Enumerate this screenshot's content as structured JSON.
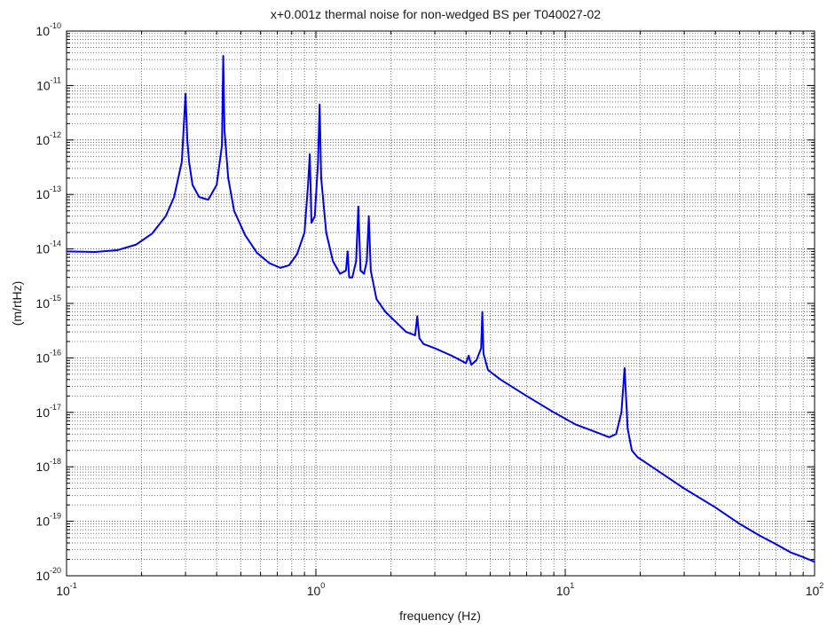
{
  "chart_data": {
    "type": "line",
    "title": "x+0.001z thermal noise for non-wedged BS per T040027-02",
    "xlabel": "frequency (Hz)",
    "ylabel": "(m/rtHz)",
    "xscale": "log",
    "yscale": "log",
    "xlim": [
      0.1,
      100
    ],
    "ylim": [
      1e-20,
      1e-10
    ],
    "grid": "major and minor, dotted",
    "x_ticks": [
      {
        "base": "10",
        "exp": "-1",
        "value": 0.1
      },
      {
        "base": "10",
        "exp": "0",
        "value": 1
      },
      {
        "base": "10",
        "exp": "1",
        "value": 10
      },
      {
        "base": "10",
        "exp": "2",
        "value": 100
      }
    ],
    "y_ticks": [
      {
        "base": "10",
        "exp": "-10",
        "value": 1e-10
      },
      {
        "base": "10",
        "exp": "-11",
        "value": 1e-11
      },
      {
        "base": "10",
        "exp": "-12",
        "value": 1e-12
      },
      {
        "base": "10",
        "exp": "-13",
        "value": 1e-13
      },
      {
        "base": "10",
        "exp": "-14",
        "value": 1e-14
      },
      {
        "base": "10",
        "exp": "-15",
        "value": 1e-15
      },
      {
        "base": "10",
        "exp": "-16",
        "value": 1e-16
      },
      {
        "base": "10",
        "exp": "-17",
        "value": 1e-17
      },
      {
        "base": "10",
        "exp": "-18",
        "value": 1e-18
      },
      {
        "base": "10",
        "exp": "-19",
        "value": 1e-19
      },
      {
        "base": "10",
        "exp": "-20",
        "value": 1e-20
      }
    ],
    "series": [
      {
        "color": "#0000ee",
        "x": [
          0.1,
          0.13,
          0.16,
          0.19,
          0.22,
          0.25,
          0.27,
          0.29,
          0.3,
          0.305,
          0.31,
          0.32,
          0.34,
          0.37,
          0.4,
          0.42,
          0.425,
          0.43,
          0.445,
          0.47,
          0.52,
          0.58,
          0.65,
          0.72,
          0.78,
          0.84,
          0.9,
          0.93,
          0.945,
          0.96,
          0.99,
          1.02,
          1.035,
          1.05,
          1.1,
          1.17,
          1.25,
          1.32,
          1.34,
          1.36,
          1.4,
          1.45,
          1.48,
          1.51,
          1.56,
          1.6,
          1.63,
          1.66,
          1.75,
          1.9,
          2.1,
          2.3,
          2.5,
          2.55,
          2.6,
          2.7,
          3.0,
          3.5,
          4.0,
          4.1,
          4.2,
          4.4,
          4.6,
          4.65,
          4.7,
          4.9,
          5.5,
          7.0,
          9.0,
          11.0,
          13.0,
          15.0,
          16.0,
          16.8,
          17.3,
          17.8,
          18.5,
          19.5,
          21.0,
          25.0,
          30.0,
          40.0,
          50.0,
          60.0,
          70.0,
          80.0,
          90.0,
          100.0
        ],
        "y": [
          9e-15,
          8.8e-15,
          9.5e-15,
          1.2e-14,
          1.9e-14,
          4e-14,
          9e-14,
          4e-13,
          7e-12,
          1e-12,
          4e-13,
          1.5e-13,
          9e-14,
          8e-14,
          1.5e-13,
          8e-13,
          3.5e-11,
          1.5e-12,
          2e-13,
          5e-14,
          1.8e-14,
          8.5e-15,
          5.5e-15,
          4.5e-15,
          5e-15,
          8e-15,
          2e-14,
          1.5e-13,
          5.5e-13,
          3e-14,
          4e-14,
          4e-13,
          4.5e-12,
          2e-13,
          2e-14,
          6e-15,
          3.5e-15,
          4e-15,
          9e-15,
          3e-15,
          3e-15,
          6e-15,
          6e-14,
          4e-15,
          3.5e-15,
          6e-15,
          4e-14,
          4e-15,
          1.2e-15,
          7e-16,
          4.5e-16,
          3e-16,
          2.6e-16,
          5.8e-16,
          2.3e-16,
          1.8e-16,
          1.5e-16,
          1.1e-16,
          8e-17,
          1.1e-16,
          7.5e-17,
          9e-17,
          1.5e-16,
          7e-16,
          1.2e-16,
          6e-17,
          4e-17,
          2e-17,
          1e-17,
          6e-18,
          4.5e-18,
          3.5e-18,
          4e-18,
          1e-17,
          6.5e-17,
          5e-18,
          2e-18,
          1.5e-18,
          1.2e-18,
          7e-19,
          4e-19,
          1.8e-19,
          9e-20,
          5.5e-20,
          3.8e-20,
          2.7e-20,
          2.2e-20,
          1.8e-20
        ]
      }
    ]
  }
}
